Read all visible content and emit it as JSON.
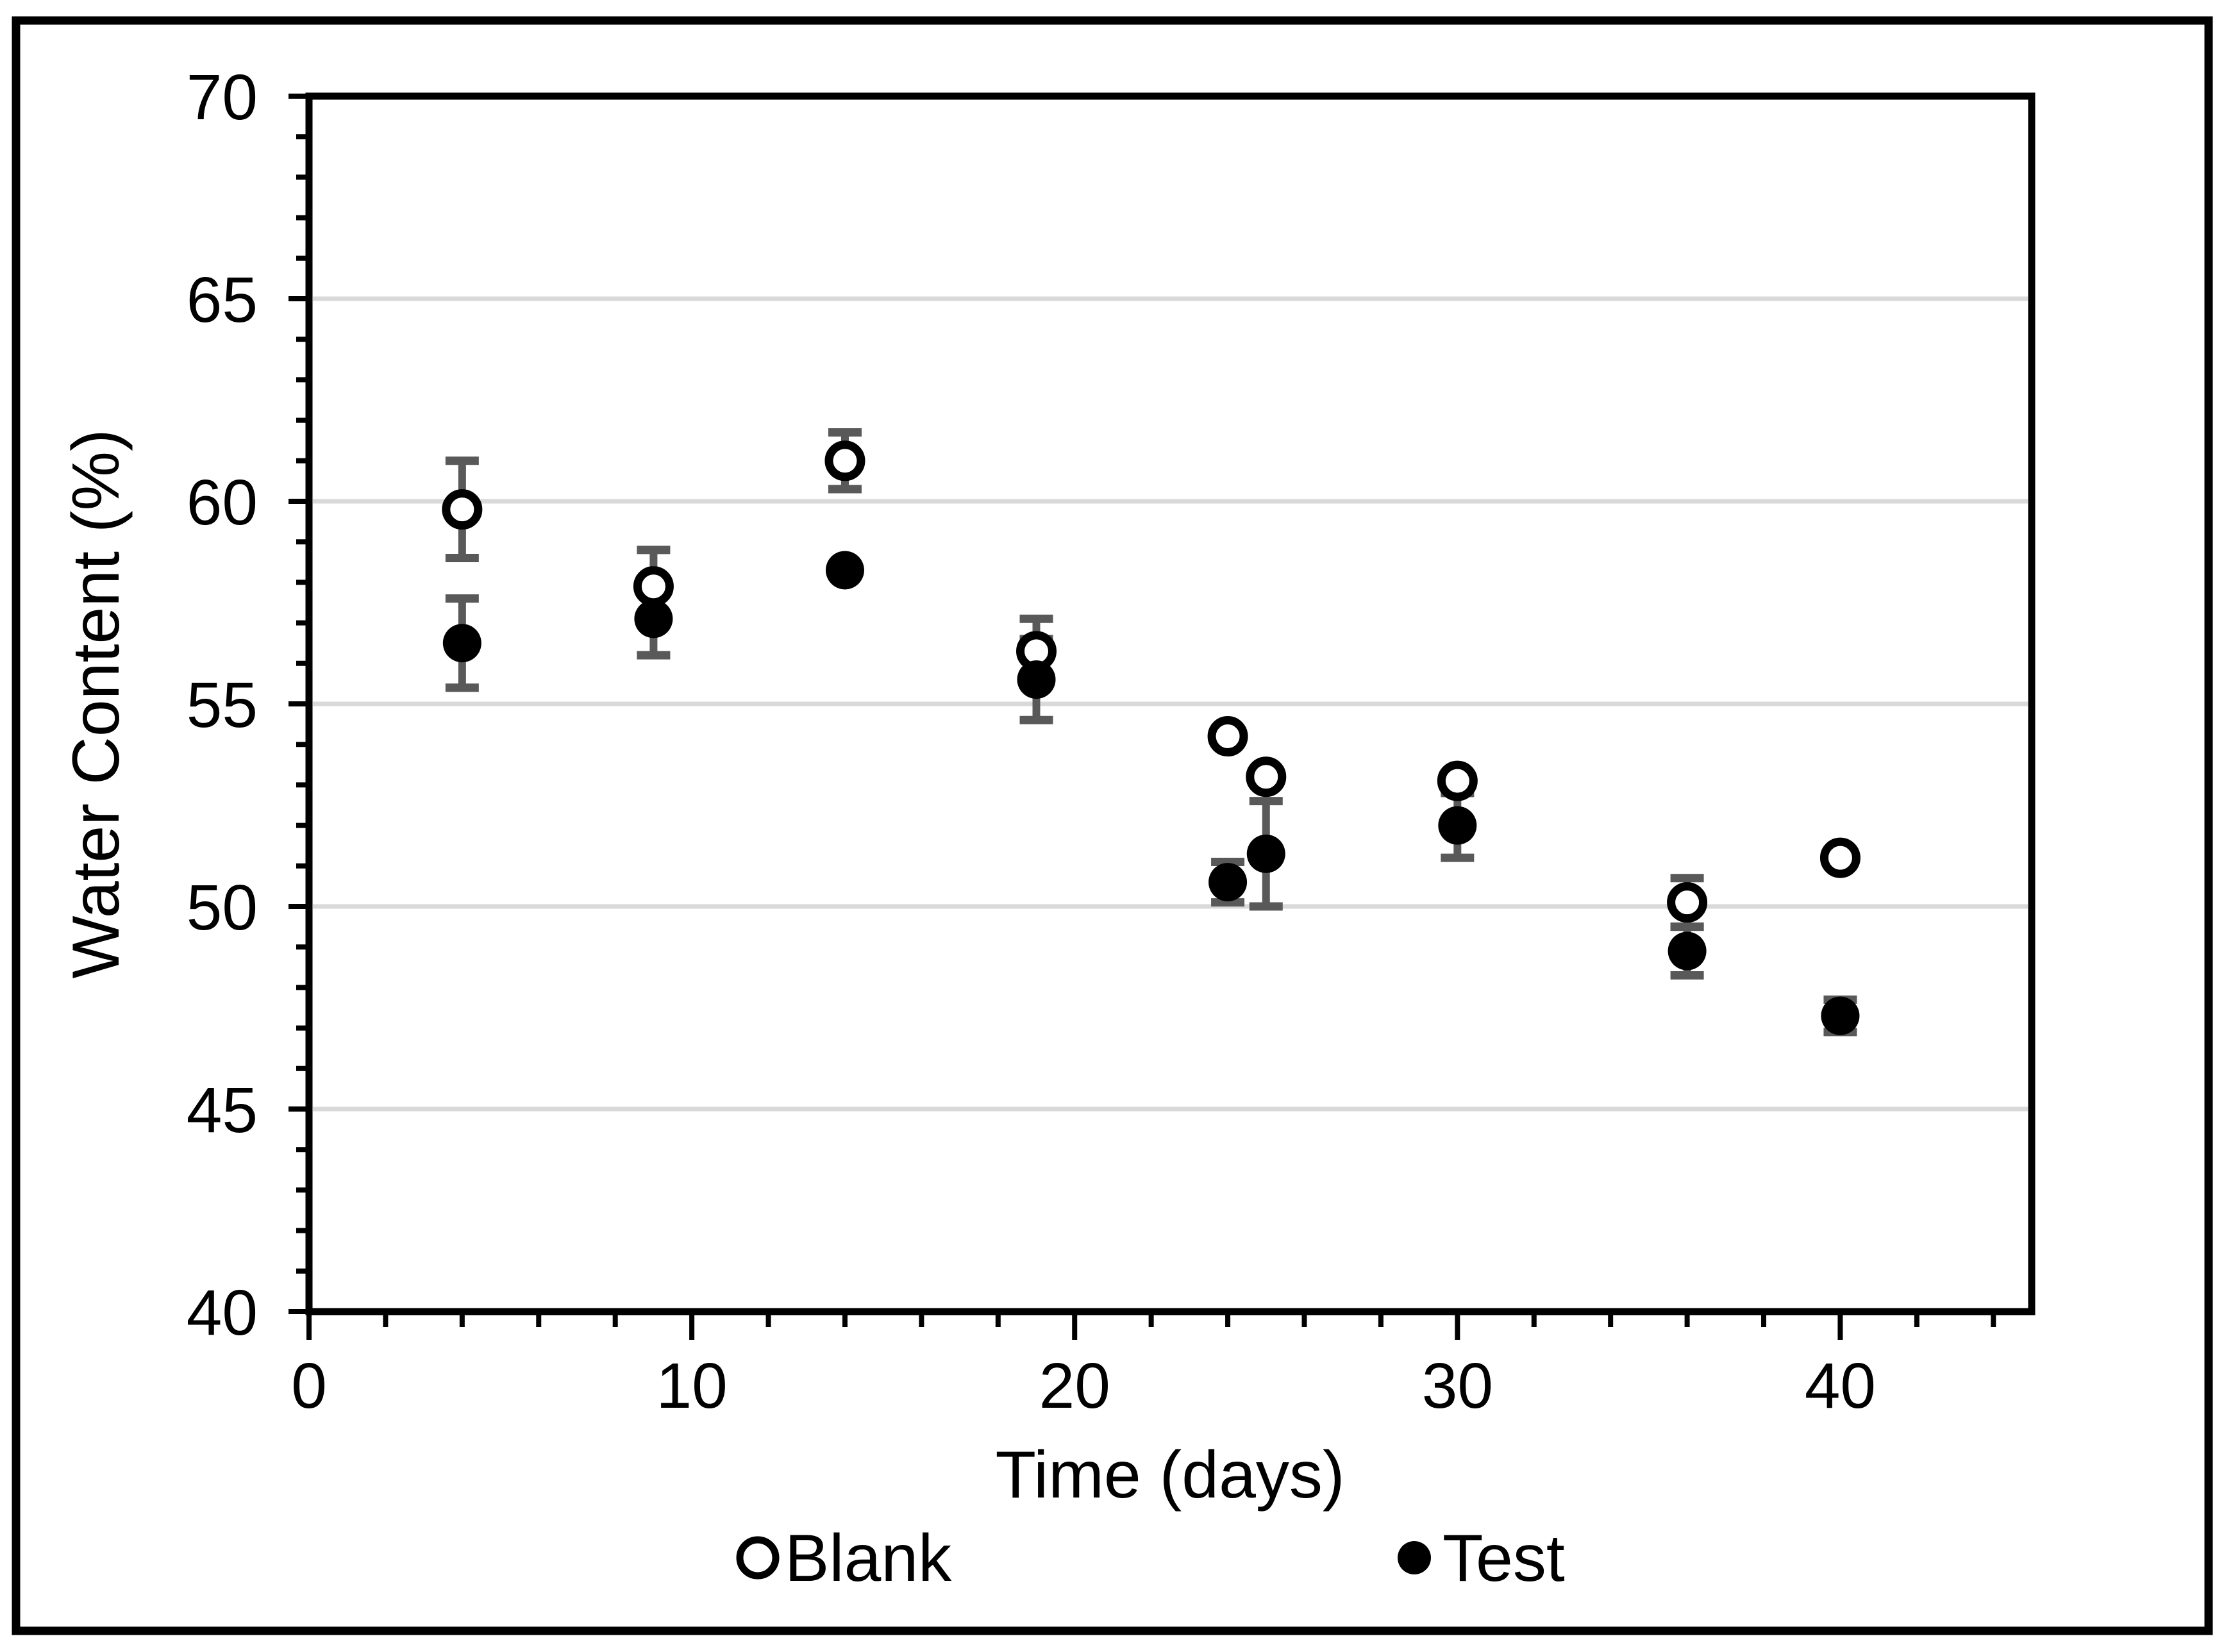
{
  "figure": {
    "background": "#ffffff",
    "border_color": "#000000",
    "axis_color": "#000000",
    "gridline_color": "#d9d9d9",
    "error_bar_color": "#595959"
  },
  "chart_data": {
    "type": "scatter",
    "title": "",
    "xlabel": "Time (days)",
    "ylabel": "Water Content (%)",
    "xlim": [
      0,
      45
    ],
    "ylim": [
      40,
      70
    ],
    "x_major_ticks": [
      0,
      10,
      20,
      30,
      40
    ],
    "x_minor_step": 2,
    "y_major_ticks": [
      40,
      45,
      50,
      55,
      60,
      65,
      70
    ],
    "y_minor_step": 1,
    "gridlines": {
      "y_values": [
        45,
        50,
        55,
        60,
        65
      ],
      "visible": true
    },
    "legend_position": "bottom",
    "x": [
      4,
      9,
      14,
      19,
      24,
      25,
      30,
      36,
      40
    ],
    "series": [
      {
        "name": "Blank",
        "marker": "open-circle",
        "marker_color": "#000000",
        "marker_fill": "#ffffff",
        "y": [
          59.8,
          57.9,
          61.0,
          56.3,
          54.2,
          53.2,
          53.1,
          50.1,
          51.2
        ],
        "yerr": [
          1.2,
          0.9,
          0.7,
          0.8,
          0,
          0,
          0,
          0.6,
          0
        ]
      },
      {
        "name": "Test",
        "marker": "filled-circle",
        "marker_color": "#000000",
        "marker_fill": "#000000",
        "y": [
          56.5,
          57.1,
          58.3,
          55.6,
          50.6,
          51.3,
          52.0,
          48.9,
          47.3
        ],
        "yerr": [
          1.1,
          0.9,
          0,
          1.0,
          0.5,
          1.3,
          0.8,
          0.6,
          0.4
        ]
      }
    ]
  }
}
